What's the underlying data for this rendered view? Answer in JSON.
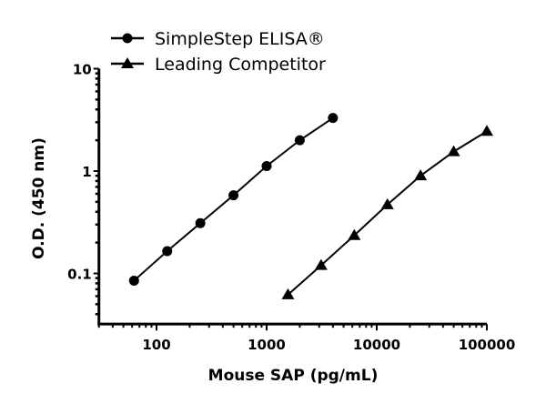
{
  "chart_data": {
    "type": "line",
    "xlabel": "Mouse SAP (pg/mL)",
    "ylabel": "O.D. (450 nm)",
    "xscale": "log",
    "yscale": "log",
    "xlim": [
      30,
      100000
    ],
    "ylim": [
      0.032,
      10
    ],
    "x_ticks": [
      {
        "value": 100,
        "label": "100"
      },
      {
        "value": 1000,
        "label": "1000"
      },
      {
        "value": 10000,
        "label": "10000"
      },
      {
        "value": 100000,
        "label": "100000"
      }
    ],
    "y_ticks": [
      {
        "value": 0.1,
        "label": "0.1"
      },
      {
        "value": 1,
        "label": "1"
      },
      {
        "value": 10,
        "label": "10"
      }
    ],
    "grid": false,
    "legend_position": "top-left",
    "series": [
      {
        "name": "SimpleStep ELISA®",
        "marker": "circle",
        "color": "#000000",
        "x": [
          62.5,
          125,
          250,
          500,
          1000,
          2000,
          4000
        ],
        "y": [
          0.085,
          0.165,
          0.31,
          0.58,
          1.12,
          2.0,
          3.3
        ]
      },
      {
        "name": "Leading Competitor",
        "marker": "triangle",
        "color": "#000000",
        "x": [
          1562.5,
          3125,
          6250,
          12500,
          25000,
          50000,
          100000
        ],
        "y": [
          0.062,
          0.12,
          0.235,
          0.47,
          0.9,
          1.55,
          2.45
        ]
      }
    ]
  }
}
